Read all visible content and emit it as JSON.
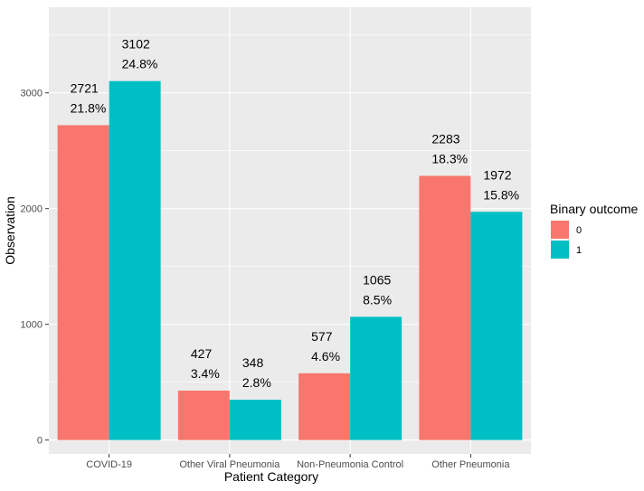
{
  "chart_data": {
    "type": "bar",
    "title": "",
    "xlabel": "Patient Category",
    "ylabel": "Observation",
    "ylim": [
      0,
      3600
    ],
    "yticks": [
      0,
      1000,
      2000,
      3000
    ],
    "categories": [
      "COVID-19",
      "Other Viral Pneumonia",
      "Non-Pneumonia Control",
      "Other Pneumonia"
    ],
    "series": [
      {
        "name": "0",
        "color": "#F8766D",
        "values": [
          2721,
          427,
          577,
          2283
        ],
        "percent_labels": [
          "21.8%",
          "3.4%",
          "4.6%",
          "18.3%"
        ]
      },
      {
        "name": "1",
        "color": "#00BFC4",
        "values": [
          3102,
          348,
          1065,
          1972
        ],
        "percent_labels": [
          "24.8%",
          "2.8%",
          "8.5%",
          "15.8%"
        ]
      }
    ],
    "legend": {
      "title": "Binary outcome",
      "placement": "right"
    },
    "grid": true,
    "panel_background": "#EBEBEB"
  }
}
